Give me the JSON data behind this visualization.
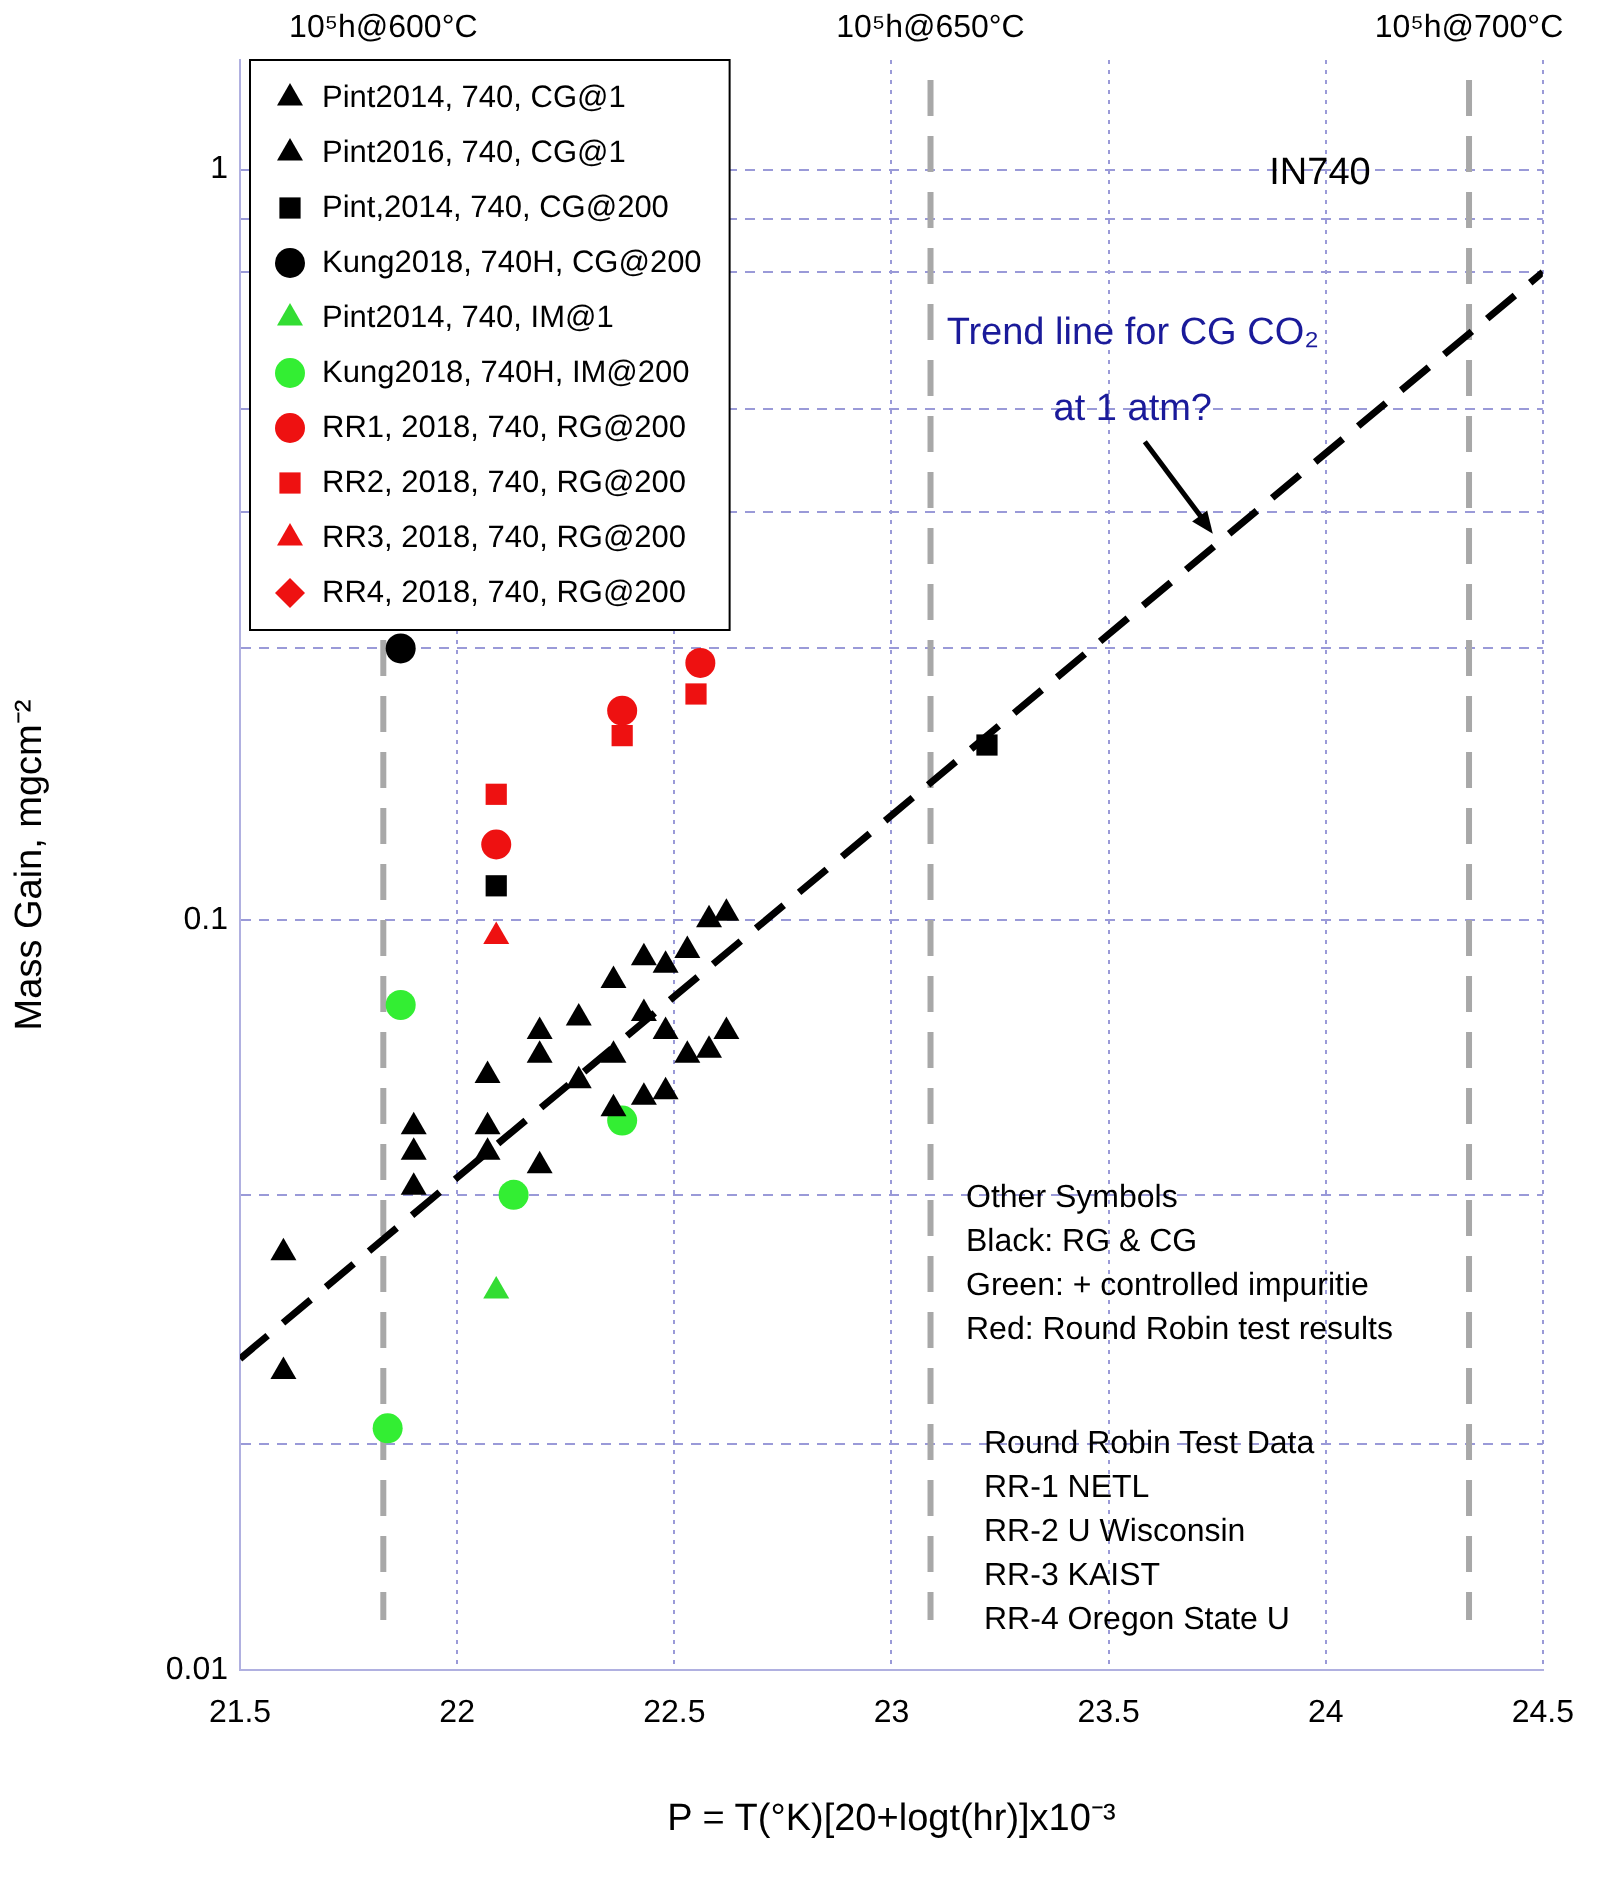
{
  "chart_data": {
    "type": "scatter",
    "xlabel": "P = T(°K)[20+logt(hr)]x10⁻³",
    "ylabel": "Mass Gain, mgcm⁻²",
    "xlim": [
      21.5,
      24.5
    ],
    "xticks": [
      21.5,
      22,
      22.5,
      23,
      23.5,
      24,
      24.5
    ],
    "ylim": [
      0.01,
      1.4
    ],
    "yticks": [
      0.01,
      {
        "value": 0.02,
        "label": null
      },
      {
        "value": 0.043,
        "label": null
      },
      0.1,
      {
        "value": 0.23,
        "label": null
      },
      {
        "value": 0.35,
        "label": null
      },
      {
        "value": 0.48,
        "label": null
      },
      {
        "value": 0.73,
        "label": null
      },
      {
        "value": 0.86,
        "label": null
      },
      1
    ],
    "log": "y",
    "grid": true,
    "legend": "top left",
    "series": [
      {
        "name": "Pint2014, 740, CG@1",
        "color": "#000000",
        "marker": "triangle",
        "x": [
          21.6,
          21.9,
          22.07,
          22.07,
          22.19,
          22.28,
          22.36,
          22.36,
          22.43,
          22.43,
          22.48,
          22.48,
          22.53,
          22.58,
          22.62
        ],
        "values": [
          0.025,
          0.044,
          0.053,
          0.049,
          0.047,
          0.061,
          0.066,
          0.056,
          0.075,
          0.058,
          0.071,
          0.059,
          0.066,
          0.067,
          0.071
        ]
      },
      {
        "name": "Pint2016, 740, CG@1",
        "color": "#000000",
        "marker": "triangle",
        "x": [
          21.6,
          21.9,
          21.9,
          22.07,
          22.19,
          22.19,
          22.28,
          22.36,
          22.43,
          22.48,
          22.53,
          22.58,
          22.62
        ],
        "values": [
          0.036,
          0.053,
          0.049,
          0.062,
          0.071,
          0.066,
          0.074,
          0.083,
          0.089,
          0.087,
          0.091,
          0.1,
          0.102
        ]
      },
      {
        "name": "Pint,2014, 740, CG@200",
        "color": "#000000",
        "marker": "square",
        "x": [
          22.09,
          23.22
        ],
        "values": [
          0.111,
          0.171
        ]
      },
      {
        "name": "Kung2018, 740H, CG@200",
        "color": "#000000",
        "marker": "circle",
        "x": [
          21.87
        ],
        "values": [
          0.23
        ]
      },
      {
        "name": "Pint2014, 740, IM@1",
        "color": "#33dd33",
        "marker": "triangle",
        "x": [
          22.09
        ],
        "values": [
          0.032
        ]
      },
      {
        "name": "Kung2018, 740H, IM@200",
        "color": "#33ee33",
        "marker": "circle",
        "x": [
          21.87,
          22.13,
          22.38,
          21.84
        ],
        "values": [
          0.077,
          0.043,
          0.054,
          0.021
        ]
      },
      {
        "name": "RR1, 2018, 740, RG@200",
        "color": "#ee1111",
        "marker": "circle",
        "x": [
          22.09,
          22.38,
          22.56
        ],
        "values": [
          0.126,
          0.19,
          0.22
        ]
      },
      {
        "name": "RR2, 2018, 740, RG@200",
        "color": "#ee1111",
        "marker": "square",
        "x": [
          22.09,
          22.38,
          22.55
        ],
        "values": [
          0.147,
          0.176,
          0.2
        ]
      },
      {
        "name": "RR3, 2018, 740, RG@200",
        "color": "#ee1111",
        "marker": "triangle",
        "x": [
          22.09
        ],
        "values": [
          0.095
        ]
      },
      {
        "name": "RR4, 2018, 740, RG@200",
        "color": "#ee1111",
        "marker": "diamond"
      },
      {
        "type": "line",
        "color": "#000000",
        "marker": "none",
        "line_style": "dashed",
        "x": [
          21.5,
          24.5
        ],
        "values": [
          0.026,
          0.73
        ]
      }
    ],
    "ref_lines": [
      {
        "axis": "x",
        "value": 21.83,
        "label": "10⁵h@600°C",
        "color": "#a8a8a8",
        "line_style": "dashed"
      },
      {
        "axis": "x",
        "value": 23.09,
        "label": "10⁵h@650°C",
        "color": "#a8a8a8",
        "line_style": "dashed"
      },
      {
        "axis": "x",
        "value": 24.33,
        "label": "10⁵h@700°C",
        "color": "#a8a8a8",
        "line_style": "dashed"
      }
    ],
    "annotations": [
      "IN740",
      "Other Symbols\nBlack: RG & CG\nGreen: + controlled impuritie\nRed: Round Robin test results",
      "Round Robin Test Data\nRR-1 NETL\nRR-2 U Wisconsin\nRR-3 KAIST\nRR-4 Oregon State U",
      {
        "text": "Trend line for CG CO₂\nat 1 atm?",
        "x": 23.74,
        "y": 0.327
      }
    ]
  }
}
